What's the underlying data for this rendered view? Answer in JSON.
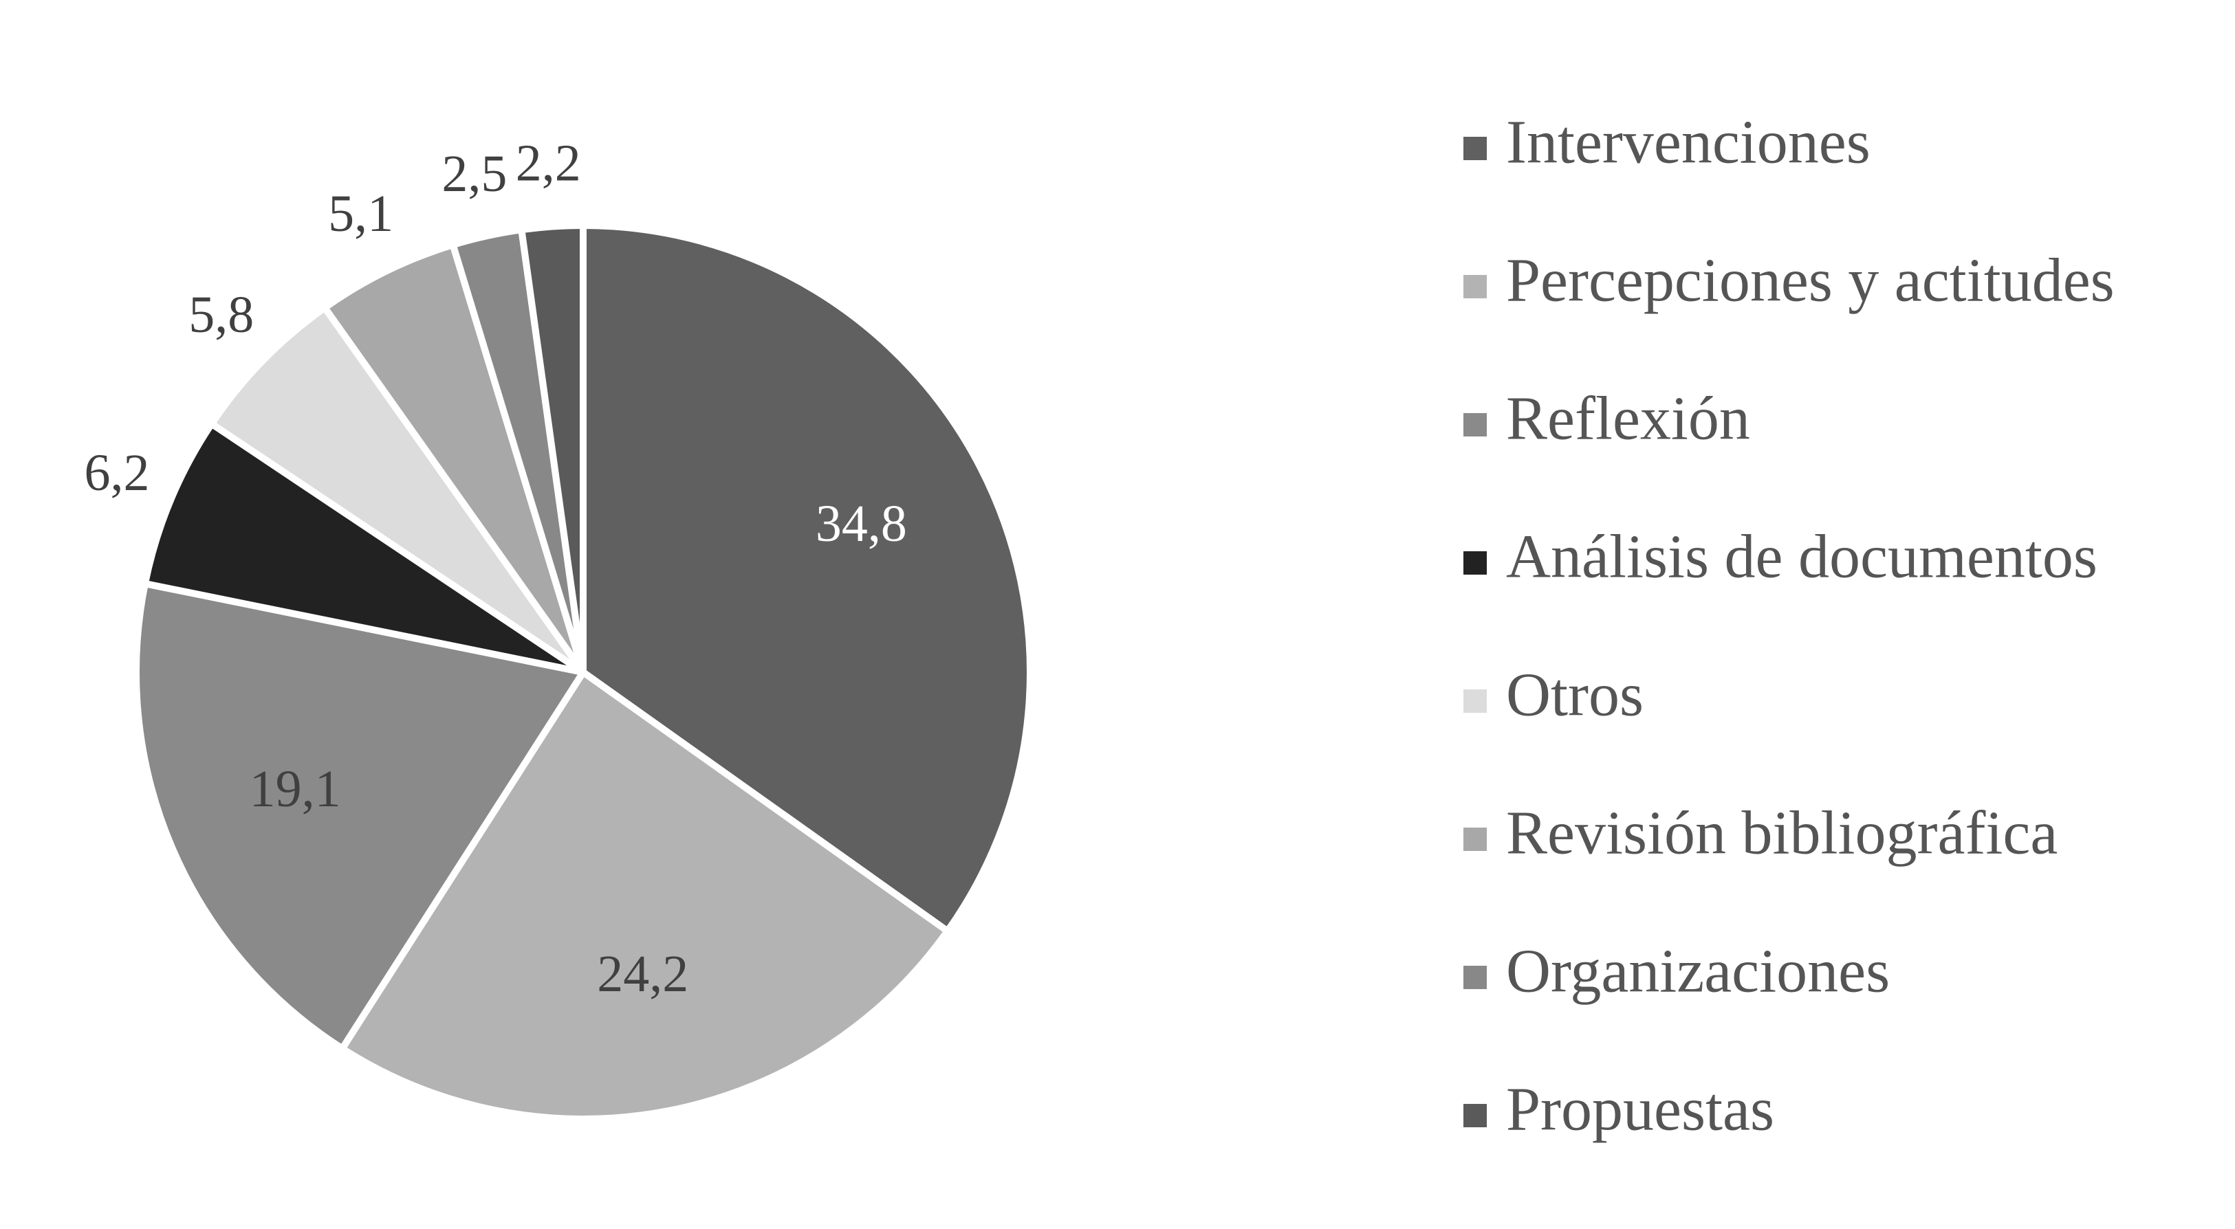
{
  "chart_data": {
    "type": "pie",
    "categories": [
      "Intervenciones",
      "Percepciones y actitudes",
      "Reflexión",
      "Análisis de documentos",
      "Otros",
      "Revisión bibliográfica",
      "Organizaciones",
      "Propuestas"
    ],
    "values": [
      34.8,
      24.2,
      19.1,
      6.2,
      5.8,
      5.1,
      2.5,
      2.2
    ],
    "value_labels": [
      "34,8",
      "24,2",
      "19,1",
      "6,2",
      "5,8",
      "5,1",
      "2,5",
      "2,2"
    ],
    "colors": [
      "#606060",
      "#b3b3b3",
      "#8a8a8a",
      "#222222",
      "#dcdcdc",
      "#a8a8a8",
      "#888888",
      "#5a5a5a"
    ],
    "legend": "right"
  }
}
